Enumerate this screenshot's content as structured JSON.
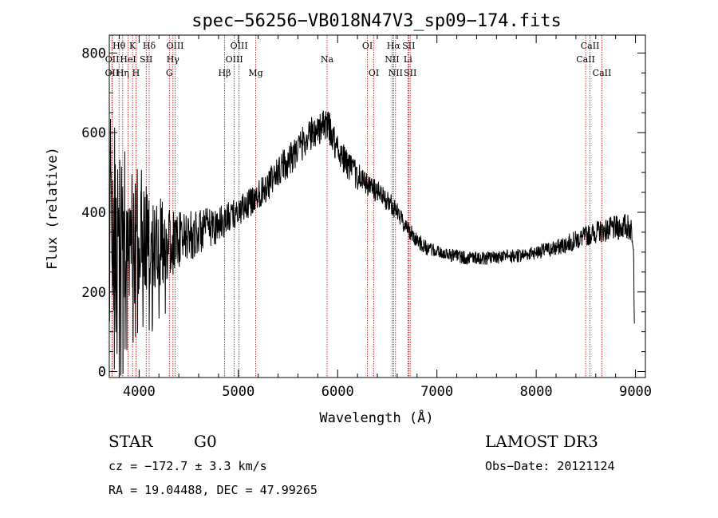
{
  "chart_data": {
    "type": "line",
    "title": "spec−56256−VB018N47V3_sp09−174.fits",
    "xlabel": "Wavelength (Å)",
    "ylabel": "Flux (relative)",
    "xlim": [
      3700,
      9100
    ],
    "ylim": [
      -15,
      845
    ],
    "xticks": [
      4000,
      5000,
      6000,
      7000,
      8000,
      9000
    ],
    "xtick_labels": [
      "4000",
      "5000",
      "6000",
      "7000",
      "8000",
      "9000"
    ],
    "yticks": [
      0,
      200,
      400,
      600,
      800
    ],
    "ytick_labels": [
      "0",
      "200",
      "400",
      "600",
      "800"
    ],
    "continuum": [
      [
        3700,
        20
      ],
      [
        3710,
        700
      ],
      [
        3730,
        420
      ],
      [
        3760,
        380
      ],
      [
        3800,
        330
      ],
      [
        3850,
        360
      ],
      [
        3900,
        380
      ],
      [
        3950,
        330
      ],
      [
        4000,
        350
      ],
      [
        4100,
        340
      ],
      [
        4200,
        330
      ],
      [
        4300,
        320
      ],
      [
        4400,
        330
      ],
      [
        4500,
        340
      ],
      [
        4600,
        350
      ],
      [
        4700,
        360
      ],
      [
        4800,
        370
      ],
      [
        4900,
        385
      ],
      [
        5000,
        400
      ],
      [
        5100,
        420
      ],
      [
        5200,
        445
      ],
      [
        5300,
        470
      ],
      [
        5400,
        500
      ],
      [
        5500,
        530
      ],
      [
        5600,
        560
      ],
      [
        5700,
        590
      ],
      [
        5800,
        610
      ],
      [
        5900,
        620
      ],
      [
        6000,
        560
      ],
      [
        6100,
        520
      ],
      [
        6200,
        490
      ],
      [
        6300,
        470
      ],
      [
        6400,
        450
      ],
      [
        6500,
        430
      ],
      [
        6600,
        400
      ],
      [
        6700,
        360
      ],
      [
        6800,
        330
      ],
      [
        6900,
        310
      ],
      [
        7000,
        300
      ],
      [
        7100,
        295
      ],
      [
        7200,
        290
      ],
      [
        7300,
        285
      ],
      [
        7400,
        285
      ],
      [
        7500,
        285
      ],
      [
        7600,
        285
      ],
      [
        7700,
        290
      ],
      [
        7800,
        290
      ],
      [
        7900,
        295
      ],
      [
        8000,
        300
      ],
      [
        8100,
        305
      ],
      [
        8200,
        310
      ],
      [
        8300,
        320
      ],
      [
        8400,
        330
      ],
      [
        8500,
        340
      ],
      [
        8600,
        350
      ],
      [
        8700,
        355
      ],
      [
        8800,
        360
      ],
      [
        8900,
        365
      ],
      [
        8950,
        360
      ],
      [
        8980,
        340
      ],
      [
        8990,
        100
      ]
    ],
    "noise": [
      [
        3700,
        260
      ],
      [
        4100,
        140
      ],
      [
        4400,
        70
      ],
      [
        5000,
        35
      ],
      [
        5600,
        45
      ],
      [
        6000,
        40
      ],
      [
        6600,
        25
      ],
      [
        7000,
        16
      ],
      [
        8000,
        18
      ],
      [
        8600,
        28
      ],
      [
        8990,
        35
      ]
    ],
    "spectral_lines": [
      {
        "name": "OII",
        "wavelength": 3727,
        "row": 3
      },
      {
        "name": "OII",
        "wavelength": 3729,
        "row": 2
      },
      {
        "name": "Hθ",
        "wavelength": 3798,
        "row": 1
      },
      {
        "name": "Hη",
        "wavelength": 3835,
        "row": 3
      },
      {
        "name": "HeI",
        "wavelength": 3889,
        "row": 2
      },
      {
        "name": "K",
        "wavelength": 3934,
        "row": 1
      },
      {
        "name": "H",
        "wavelength": 3969,
        "row": 3
      },
      {
        "name": "SII",
        "wavelength": 4072,
        "row": 2
      },
      {
        "name": "Hδ",
        "wavelength": 4102,
        "row": 1
      },
      {
        "name": "G",
        "wavelength": 4305,
        "row": 3
      },
      {
        "name": "Hγ",
        "wavelength": 4341,
        "row": 2
      },
      {
        "name": "OIII",
        "wavelength": 4363,
        "row": 1
      },
      {
        "name": "Hβ",
        "wavelength": 4861,
        "row": 3
      },
      {
        "name": "OIII",
        "wavelength": 4959,
        "row": 2
      },
      {
        "name": "OIII",
        "wavelength": 5007,
        "row": 1
      },
      {
        "name": "Mg",
        "wavelength": 5175,
        "row": 3
      },
      {
        "name": "Na",
        "wavelength": 5894,
        "row": 2
      },
      {
        "name": "OI",
        "wavelength": 6300,
        "row": 1
      },
      {
        "name": "OI",
        "wavelength": 6364,
        "row": 3
      },
      {
        "name": "NII",
        "wavelength": 6548,
        "row": 2
      },
      {
        "name": "Hα",
        "wavelength": 6563,
        "row": 1
      },
      {
        "name": "NII",
        "wavelength": 6583,
        "row": 3
      },
      {
        "name": "Li",
        "wavelength": 6708,
        "row": 2
      },
      {
        "name": "SII",
        "wavelength": 6716,
        "row": 1
      },
      {
        "name": "SII",
        "wavelength": 6731,
        "row": 3
      },
      {
        "name": "CaII",
        "wavelength": 8498,
        "row": 2
      },
      {
        "name": "CaII",
        "wavelength": 8542,
        "row": 1
      },
      {
        "name": "CaII",
        "wavelength": 8662,
        "row": 3
      }
    ]
  },
  "info": {
    "object_type": "STAR",
    "subclass": "G0",
    "survey": "LAMOST DR3",
    "redshift": "cz = −172.7 ± 3.3 km/s",
    "obs_date": "Obs−Date: 20121124",
    "coords": "RA =  19.04488, DEC =  47.99265"
  },
  "colors": {
    "line_marker": "#c00000",
    "spectrum": "#000000"
  }
}
